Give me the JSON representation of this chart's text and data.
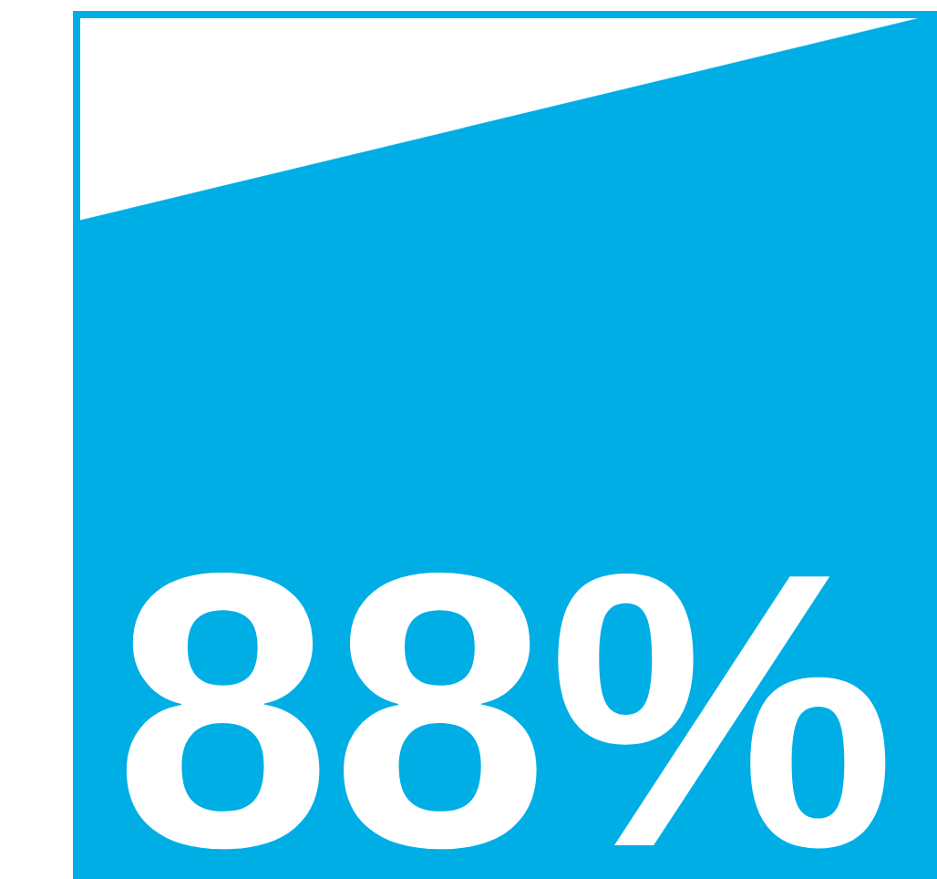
{
  "chart_data": {
    "type": "other",
    "values": [
      88
    ],
    "value_labels": [
      "88%"
    ],
    "color": "#00aee6"
  }
}
